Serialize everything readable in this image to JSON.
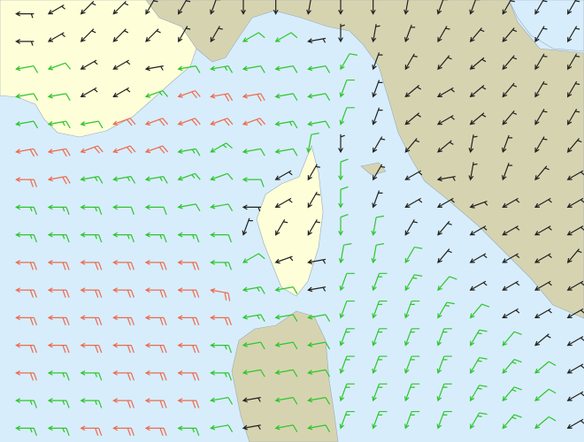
{
  "wind": {
    "colors": [
      {
        "min": 0,
        "color": "#222222"
      },
      {
        "min": 10,
        "color": "#2ec62e"
      },
      {
        "min": 20,
        "color": "#ee6a50"
      }
    ],
    "speed": [
      [
        5,
        5,
        5,
        5,
        5,
        5,
        5,
        5,
        5,
        5,
        5,
        5,
        5,
        5,
        5,
        5,
        5,
        5
      ],
      [
        5,
        5,
        5,
        5,
        5,
        5,
        5,
        10,
        10,
        5,
        5,
        5,
        5,
        5,
        5,
        5,
        5,
        5
      ],
      [
        10,
        10,
        5,
        5,
        5,
        10,
        15,
        10,
        10,
        10,
        10,
        5,
        5,
        5,
        5,
        5,
        5,
        5
      ],
      [
        10,
        10,
        5,
        5,
        15,
        20,
        20,
        20,
        10,
        10,
        10,
        5,
        5,
        5,
        5,
        5,
        5,
        5
      ],
      [
        10,
        15,
        10,
        20,
        20,
        20,
        20,
        20,
        15,
        10,
        10,
        5,
        5,
        5,
        5,
        5,
        5,
        5
      ],
      [
        20,
        20,
        20,
        20,
        20,
        15,
        15,
        10,
        10,
        10,
        5,
        5,
        5,
        5,
        5,
        5,
        5,
        5
      ],
      [
        20,
        20,
        15,
        15,
        15,
        15,
        10,
        10,
        5,
        5,
        10,
        5,
        5,
        5,
        5,
        5,
        5,
        5
      ],
      [
        15,
        15,
        15,
        10,
        10,
        10,
        10,
        5,
        5,
        5,
        10,
        5,
        5,
        5,
        5,
        5,
        5,
        5
      ],
      [
        15,
        15,
        15,
        15,
        15,
        15,
        10,
        5,
        5,
        5,
        10,
        10,
        5,
        5,
        5,
        5,
        5,
        5
      ],
      [
        20,
        20,
        20,
        20,
        20,
        20,
        15,
        10,
        5,
        5,
        10,
        10,
        10,
        5,
        5,
        5,
        5,
        5
      ],
      [
        20,
        20,
        20,
        20,
        20,
        20,
        20,
        15,
        10,
        5,
        10,
        15,
        15,
        10,
        5,
        5,
        5,
        5
      ],
      [
        20,
        20,
        20,
        20,
        20,
        20,
        20,
        15,
        10,
        10,
        10,
        15,
        15,
        15,
        10,
        5,
        5,
        5
      ],
      [
        20,
        20,
        20,
        20,
        20,
        20,
        15,
        10,
        10,
        10,
        15,
        15,
        15,
        15,
        15,
        10,
        5,
        5
      ],
      [
        20,
        15,
        15,
        20,
        20,
        20,
        15,
        10,
        10,
        10,
        15,
        15,
        15,
        15,
        15,
        15,
        10,
        5
      ],
      [
        15,
        15,
        15,
        20,
        20,
        20,
        10,
        5,
        10,
        10,
        15,
        15,
        15,
        15,
        15,
        15,
        10,
        5
      ],
      [
        15,
        15,
        20,
        20,
        20,
        15,
        10,
        5,
        10,
        10,
        15,
        15,
        15,
        15,
        15,
        15,
        10,
        5
      ]
    ],
    "direction": [
      [
        90,
        60,
        45,
        45,
        30,
        30,
        20,
        0,
        0,
        10,
        0,
        0,
        10,
        20,
        20,
        30,
        30,
        30
      ],
      [
        90,
        60,
        45,
        45,
        45,
        30,
        30,
        60,
        60,
        80,
        0,
        10,
        20,
        30,
        40,
        40,
        30,
        30
      ],
      [
        80,
        70,
        60,
        60,
        80,
        80,
        80,
        80,
        80,
        80,
        30,
        20,
        30,
        40,
        50,
        40,
        30,
        30
      ],
      [
        80,
        80,
        60,
        60,
        70,
        70,
        80,
        80,
        80,
        80,
        20,
        20,
        50,
        60,
        50,
        40,
        30,
        30
      ],
      [
        80,
        80,
        80,
        70,
        70,
        70,
        70,
        70,
        80,
        80,
        20,
        20,
        50,
        60,
        50,
        40,
        30,
        30
      ],
      [
        80,
        80,
        70,
        70,
        70,
        80,
        60,
        80,
        80,
        10,
        0,
        30,
        40,
        50,
        10,
        20,
        30,
        40
      ],
      [
        90,
        80,
        80,
        80,
        80,
        70,
        70,
        90,
        60,
        30,
        0,
        30,
        60,
        80,
        10,
        20,
        40,
        60
      ],
      [
        90,
        90,
        90,
        90,
        90,
        80,
        80,
        90,
        60,
        30,
        0,
        20,
        60,
        60,
        70,
        60,
        60,
        60
      ],
      [
        90,
        90,
        90,
        90,
        90,
        90,
        90,
        20,
        30,
        30,
        0,
        10,
        30,
        40,
        60,
        60,
        60,
        60
      ],
      [
        90,
        90,
        90,
        90,
        90,
        90,
        90,
        60,
        70,
        80,
        10,
        10,
        30,
        40,
        60,
        60,
        60,
        40
      ],
      [
        90,
        90,
        90,
        90,
        90,
        90,
        100,
        80,
        80,
        80,
        20,
        20,
        30,
        40,
        60,
        60,
        60,
        60
      ],
      [
        90,
        90,
        90,
        90,
        90,
        90,
        90,
        80,
        80,
        80,
        20,
        20,
        20,
        30,
        40,
        60,
        60,
        60
      ],
      [
        90,
        90,
        90,
        90,
        90,
        90,
        90,
        80,
        80,
        80,
        20,
        20,
        20,
        20,
        30,
        40,
        50,
        60
      ],
      [
        90,
        90,
        90,
        90,
        90,
        90,
        90,
        80,
        80,
        80,
        20,
        20,
        20,
        20,
        30,
        40,
        50,
        60
      ],
      [
        90,
        90,
        90,
        90,
        90,
        90,
        80,
        80,
        80,
        80,
        20,
        20,
        20,
        20,
        30,
        40,
        50,
        60
      ],
      [
        90,
        90,
        90,
        90,
        90,
        90,
        80,
        80,
        80,
        80,
        20,
        20,
        20,
        20,
        30,
        40,
        50,
        60
      ]
    ]
  }
}
